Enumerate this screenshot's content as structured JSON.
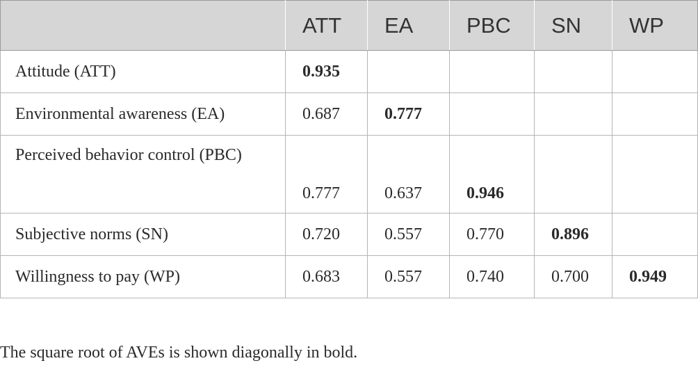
{
  "table": {
    "columns": [
      "ATT",
      "EA",
      "PBC",
      "SN",
      "WP"
    ],
    "rows": [
      {
        "label": "Attitude (ATT)",
        "values": [
          "0.935",
          "",
          "",
          "",
          ""
        ],
        "diag_index": 0
      },
      {
        "label": "Environmental awareness (EA)",
        "values": [
          "0.687",
          "0.777",
          "",
          "",
          ""
        ],
        "diag_index": 1
      },
      {
        "label": "Perceived behavior control (PBC)",
        "values": [
          "0.777",
          "0.637",
          "0.946",
          "",
          ""
        ],
        "diag_index": 2
      },
      {
        "label": "Subjective norms (SN)",
        "values": [
          "0.720",
          "0.557",
          "0.770",
          "0.896",
          ""
        ],
        "diag_index": 3
      },
      {
        "label": "Willingness to pay (WP)",
        "values": [
          "0.683",
          "0.557",
          "0.740",
          "0.700",
          "0.949"
        ],
        "diag_index": 4
      }
    ]
  },
  "footnote": "The square root of AVEs is shown diagonally in bold."
}
